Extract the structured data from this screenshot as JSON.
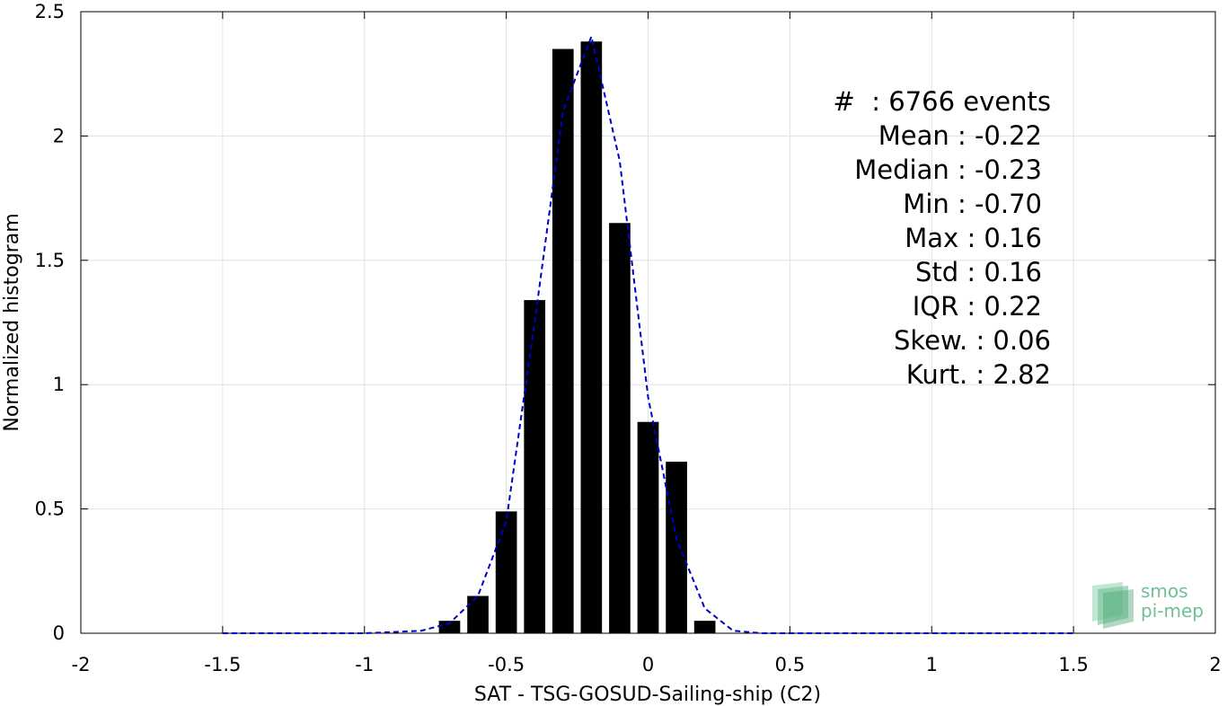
{
  "chart_data": {
    "type": "bar",
    "xlabel": "SAT - TSG-GOSUD-Sailing-ship (C2)",
    "ylabel": "Normalized histogram",
    "xlim": [
      -2,
      2
    ],
    "ylim": [
      0,
      2.5
    ],
    "grid": true,
    "x_ticks": [
      "-2",
      "-1.5",
      "-1",
      "-0.5",
      "0",
      "0.5",
      "1",
      "1.5",
      "2"
    ],
    "y_ticks": [
      "0",
      "0.5",
      "1",
      "1.5",
      "2",
      "2.5"
    ],
    "series": [
      {
        "type": "bar",
        "color": "#000000",
        "x": [
          -0.7,
          -0.6,
          -0.5,
          -0.4,
          -0.3,
          -0.2,
          -0.1,
          0.0,
          0.1,
          0.2
        ],
        "values": [
          0.05,
          0.15,
          0.49,
          1.34,
          2.35,
          2.38,
          1.65,
          0.85,
          0.69,
          0.05
        ]
      },
      {
        "type": "line",
        "style": "dashed",
        "color": "#0000cc",
        "x": [
          -1.5,
          -1.0,
          -0.8,
          -0.7,
          -0.6,
          -0.5,
          -0.4,
          -0.3,
          -0.2,
          -0.1,
          0.0,
          0.1,
          0.2,
          0.3,
          0.4,
          0.5,
          1.0,
          1.5
        ],
        "values": [
          0.0,
          0.0,
          0.01,
          0.04,
          0.15,
          0.45,
          1.25,
          2.1,
          2.4,
          1.9,
          0.95,
          0.38,
          0.1,
          0.01,
          0.0,
          0.0,
          0.0,
          0.0
        ]
      }
    ],
    "annotations": {
      "events": "#  : 6766 events",
      "mean": "Mean : -0.22",
      "median": "Median : -0.23",
      "min": "Min : -0.70",
      "max": "Max : 0.16",
      "std": "Std : 0.16",
      "iqr": "IQR : 0.22",
      "skew": "Skew. : 0.06",
      "kurt": "Kurt. : 2.82"
    }
  },
  "logo": {
    "line1": "smos",
    "line2": "pi-mep"
  }
}
